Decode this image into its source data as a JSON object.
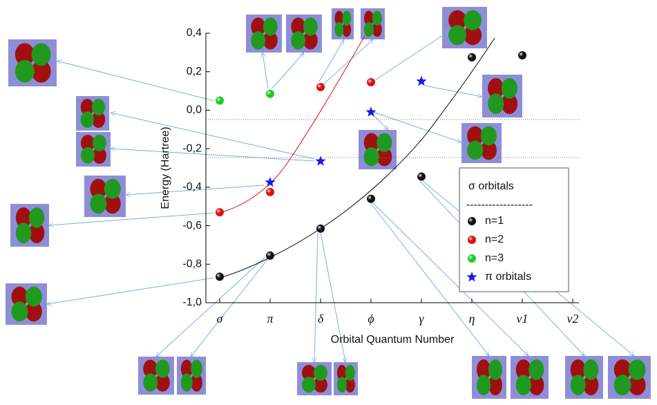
{
  "chart_data": {
    "type": "scatter",
    "y_label": "Energy (Hartree)",
    "x_label": "Orbital Quantum Number",
    "categories": [
      "σ",
      "π",
      "δ",
      "ϕ",
      "γ",
      "η",
      "ν1",
      "ν2"
    ],
    "ylim": [
      -1.0,
      0.4
    ],
    "yticks": [
      {
        "value": -1.0,
        "label": "-1,0"
      },
      {
        "value": -0.8,
        "label": "-0,8"
      },
      {
        "value": -0.6,
        "label": "-0,6"
      },
      {
        "value": -0.4,
        "label": "-0,4"
      },
      {
        "value": -0.2,
        "label": "-0,2"
      },
      {
        "value": 0.0,
        "label": "0,0"
      },
      {
        "value": 0.2,
        "label": "0,2"
      },
      {
        "value": 0.4,
        "label": "0,4"
      }
    ],
    "legend_title": "σ orbitals",
    "legend_separator": "------------------",
    "legend_position": "lower right",
    "series": [
      {
        "name": "n=1",
        "color": "#111111",
        "marker": "sphere",
        "values": [
          -0.865,
          -0.755,
          -0.615,
          -0.46,
          -0.345,
          0.275,
          0.285,
          null
        ]
      },
      {
        "name": "n=2",
        "color": "#e01010",
        "marker": "sphere",
        "values": [
          -0.53,
          -0.425,
          0.12,
          0.145,
          null,
          null,
          null,
          null
        ]
      },
      {
        "name": "n=3",
        "color": "#22cc22",
        "marker": "sphere",
        "values": [
          0.05,
          0.085,
          null,
          null,
          null,
          null,
          null,
          null
        ]
      },
      {
        "name": "π orbitals",
        "color": "#1a1ae0",
        "marker": "star",
        "values": [
          null,
          -0.375,
          -0.265,
          -0.01,
          0.15,
          null,
          null,
          null
        ]
      }
    ]
  }
}
